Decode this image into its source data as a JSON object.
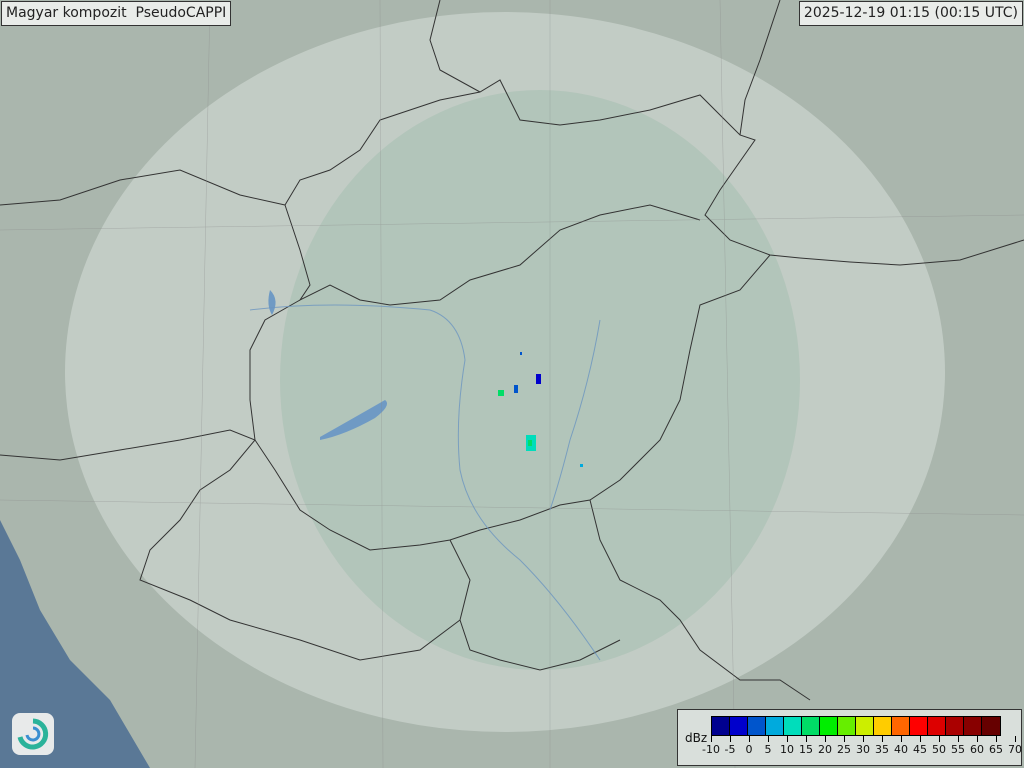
{
  "header": {
    "title": "Magyar kompozit  PseudoCAPPI",
    "timestamp": "2025-12-19 01:15 (00:15 UTC)"
  },
  "legend": {
    "unit": "dBz",
    "ticks": [
      "-10",
      "-5",
      "0",
      "5",
      "10",
      "15",
      "20",
      "25",
      "30",
      "35",
      "40",
      "45",
      "50",
      "55",
      "60",
      "65",
      "70"
    ],
    "colors": [
      "#00008f",
      "#0000cc",
      "#0055cc",
      "#00aadd",
      "#00ddbb",
      "#00dd66",
      "#00ee00",
      "#66ee00",
      "#ccee00",
      "#ffcc00",
      "#ff6600",
      "#ff0000",
      "#dd0000",
      "#aa0000",
      "#880000",
      "#660000"
    ]
  },
  "map": {
    "background_color": "#a9b5ad",
    "coverage_color": "#dfe7e2",
    "lake_color": "#6f9ac4",
    "sea_color": "#5a7896",
    "border_color": "#333333"
  },
  "logo": {
    "icon": "swirl-logo-icon"
  }
}
